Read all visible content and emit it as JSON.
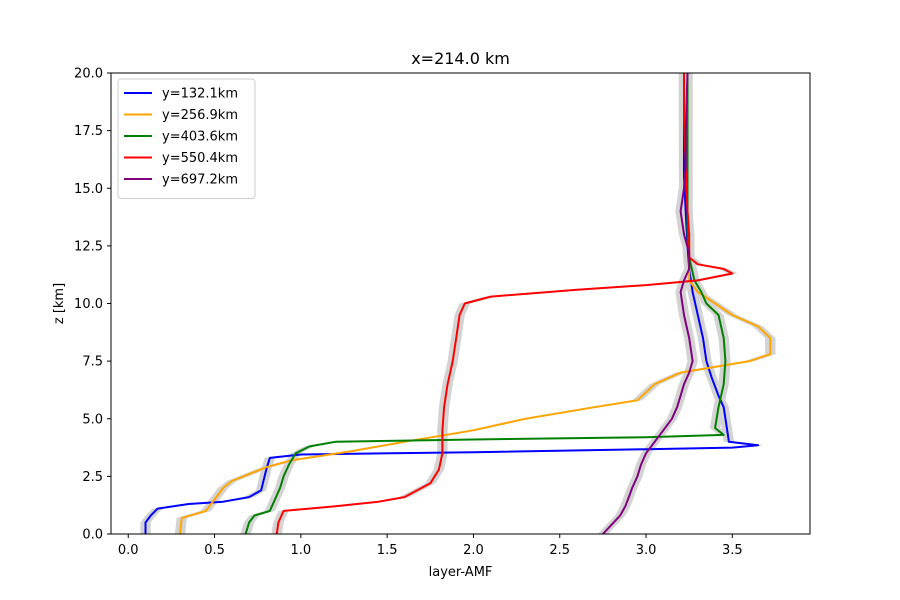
{
  "chart_data": {
    "type": "line",
    "title": "x=214.0 km",
    "xlabel": "layer-AMF",
    "ylabel": "z [km]",
    "xlim": [
      -0.1,
      3.95
    ],
    "ylim": [
      0,
      20
    ],
    "xticks": [
      0.0,
      0.5,
      1.0,
      1.5,
      2.0,
      2.5,
      3.0,
      3.5
    ],
    "xtick_labels": [
      "0.0",
      "0.5",
      "1.0",
      "1.5",
      "2.0",
      "2.5",
      "3.0",
      "3.5"
    ],
    "yticks": [
      0.0,
      2.5,
      5.0,
      7.5,
      10.0,
      12.5,
      15.0,
      17.5,
      20.0
    ],
    "ytick_labels": [
      "0.0",
      "2.5",
      "5.0",
      "7.5",
      "10.0",
      "12.5",
      "15.0",
      "17.5",
      "20.0"
    ],
    "grid": false,
    "legend_position": "top-left",
    "uncertainty_band_color": "#d3d3d3",
    "series": [
      {
        "name": "y=132.1km",
        "color": "#0000ff",
        "points": [
          [
            0.1,
            0.0
          ],
          [
            0.1,
            0.5
          ],
          [
            0.13,
            0.8
          ],
          [
            0.17,
            1.1
          ],
          [
            0.35,
            1.3
          ],
          [
            0.55,
            1.4
          ],
          [
            0.7,
            1.6
          ],
          [
            0.77,
            1.9
          ],
          [
            0.78,
            2.2
          ],
          [
            0.8,
            2.8
          ],
          [
            0.82,
            3.3
          ],
          [
            1.0,
            3.45
          ],
          [
            2.0,
            3.55
          ],
          [
            3.0,
            3.68
          ],
          [
            3.5,
            3.75
          ],
          [
            3.65,
            3.85
          ],
          [
            3.48,
            4.0
          ],
          [
            3.47,
            4.5
          ],
          [
            3.45,
            5.5
          ],
          [
            3.42,
            6.0
          ],
          [
            3.38,
            6.8
          ],
          [
            3.35,
            7.5
          ],
          [
            3.33,
            8.5
          ],
          [
            3.3,
            9.5
          ],
          [
            3.27,
            10.5
          ],
          [
            3.25,
            11.5
          ],
          [
            3.24,
            12.5
          ],
          [
            3.23,
            14.0
          ],
          [
            3.22,
            15.5
          ],
          [
            3.22,
            17.5
          ],
          [
            3.22,
            20.0
          ]
        ]
      },
      {
        "name": "y=256.9km",
        "color": "#ffa500",
        "points": [
          [
            0.3,
            0.0
          ],
          [
            0.31,
            0.7
          ],
          [
            0.45,
            1.0
          ],
          [
            0.5,
            1.5
          ],
          [
            0.55,
            2.0
          ],
          [
            0.6,
            2.3
          ],
          [
            0.7,
            2.6
          ],
          [
            0.8,
            2.9
          ],
          [
            0.95,
            3.2
          ],
          [
            1.3,
            3.6
          ],
          [
            1.6,
            4.0
          ],
          [
            2.0,
            4.5
          ],
          [
            2.3,
            5.0
          ],
          [
            2.7,
            5.5
          ],
          [
            2.95,
            5.8
          ],
          [
            3.05,
            6.5
          ],
          [
            3.2,
            7.0
          ],
          [
            3.6,
            7.5
          ],
          [
            3.72,
            7.8
          ],
          [
            3.72,
            8.5
          ],
          [
            3.65,
            9.0
          ],
          [
            3.5,
            9.5
          ],
          [
            3.4,
            10.0
          ],
          [
            3.3,
            10.5
          ],
          [
            3.25,
            11.0
          ],
          [
            3.25,
            12.5
          ],
          [
            3.24,
            14.0
          ],
          [
            3.24,
            15.5
          ],
          [
            3.24,
            17.5
          ],
          [
            3.24,
            20.0
          ]
        ]
      },
      {
        "name": "y=403.6km",
        "color": "#008000",
        "points": [
          [
            0.68,
            0.0
          ],
          [
            0.7,
            0.5
          ],
          [
            0.73,
            0.8
          ],
          [
            0.82,
            1.0
          ],
          [
            0.85,
            1.5
          ],
          [
            0.88,
            2.0
          ],
          [
            0.9,
            2.5
          ],
          [
            0.93,
            3.0
          ],
          [
            0.97,
            3.5
          ],
          [
            1.05,
            3.8
          ],
          [
            1.2,
            4.0
          ],
          [
            2.0,
            4.1
          ],
          [
            3.0,
            4.2
          ],
          [
            3.45,
            4.3
          ],
          [
            3.4,
            4.6
          ],
          [
            3.42,
            5.5
          ],
          [
            3.45,
            6.5
          ],
          [
            3.46,
            7.5
          ],
          [
            3.45,
            8.5
          ],
          [
            3.42,
            9.5
          ],
          [
            3.35,
            10.0
          ],
          [
            3.32,
            10.5
          ],
          [
            3.28,
            11.0
          ],
          [
            3.25,
            12.0
          ],
          [
            3.24,
            13.0
          ],
          [
            3.24,
            15.0
          ],
          [
            3.24,
            17.5
          ],
          [
            3.24,
            20.0
          ]
        ]
      },
      {
        "name": "y=550.4km",
        "color": "#ff0000",
        "points": [
          [
            0.86,
            0.0
          ],
          [
            0.87,
            0.5
          ],
          [
            0.9,
            1.0
          ],
          [
            1.2,
            1.2
          ],
          [
            1.45,
            1.4
          ],
          [
            1.6,
            1.6
          ],
          [
            1.7,
            2.0
          ],
          [
            1.75,
            2.2
          ],
          [
            1.8,
            2.8
          ],
          [
            1.82,
            3.5
          ],
          [
            1.82,
            4.5
          ],
          [
            1.83,
            5.5
          ],
          [
            1.85,
            6.5
          ],
          [
            1.88,
            7.5
          ],
          [
            1.9,
            8.5
          ],
          [
            1.92,
            9.5
          ],
          [
            1.95,
            10.0
          ],
          [
            2.1,
            10.3
          ],
          [
            2.6,
            10.6
          ],
          [
            3.0,
            10.8
          ],
          [
            3.3,
            11.0
          ],
          [
            3.5,
            11.3
          ],
          [
            3.45,
            11.5
          ],
          [
            3.3,
            11.7
          ],
          [
            3.25,
            12.0
          ],
          [
            3.25,
            13.0
          ],
          [
            3.24,
            14.0
          ],
          [
            3.23,
            16.0
          ],
          [
            3.22,
            18.0
          ],
          [
            3.22,
            20.0
          ]
        ]
      },
      {
        "name": "y=697.2km",
        "color": "#800080",
        "points": [
          [
            2.75,
            0.0
          ],
          [
            2.8,
            0.4
          ],
          [
            2.85,
            0.8
          ],
          [
            2.88,
            1.2
          ],
          [
            2.9,
            1.6
          ],
          [
            2.92,
            2.0
          ],
          [
            2.95,
            2.5
          ],
          [
            2.97,
            3.0
          ],
          [
            3.0,
            3.5
          ],
          [
            3.05,
            4.0
          ],
          [
            3.1,
            4.5
          ],
          [
            3.15,
            5.0
          ],
          [
            3.18,
            5.5
          ],
          [
            3.2,
            6.0
          ],
          [
            3.22,
            6.5
          ],
          [
            3.25,
            7.0
          ],
          [
            3.27,
            7.5
          ],
          [
            3.25,
            8.5
          ],
          [
            3.22,
            9.5
          ],
          [
            3.2,
            10.5
          ],
          [
            3.22,
            11.0
          ],
          [
            3.25,
            11.5
          ],
          [
            3.25,
            12.2
          ],
          [
            3.22,
            13.0
          ],
          [
            3.2,
            14.0
          ],
          [
            3.22,
            15.0
          ],
          [
            3.23,
            16.0
          ],
          [
            3.23,
            17.5
          ],
          [
            3.24,
            20.0
          ]
        ]
      }
    ]
  }
}
